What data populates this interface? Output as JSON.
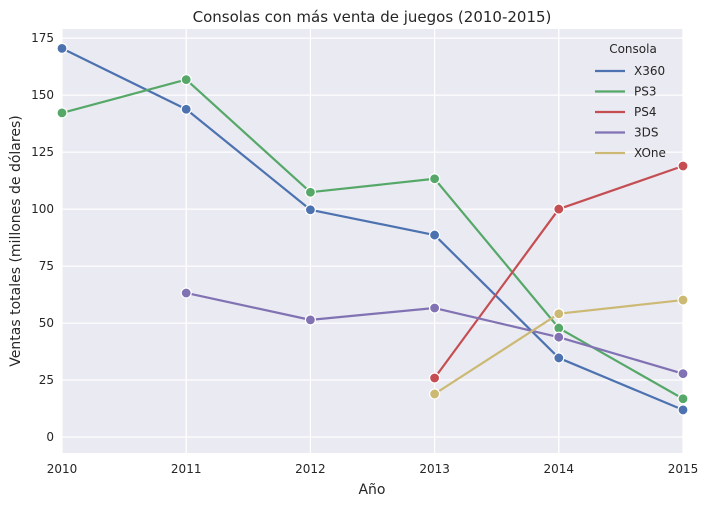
{
  "chart_data": {
    "type": "line",
    "title": "Consolas con más venta de juegos (2010-2015)",
    "xlabel": "Año",
    "ylabel": "Ventas totales (millones de dólares)",
    "x": [
      2010,
      2011,
      2012,
      2013,
      2014,
      2015
    ],
    "xlim": [
      2010,
      2015
    ],
    "ylim": [
      -7,
      179
    ],
    "yticks": [
      0,
      25,
      50,
      75,
      100,
      125,
      150,
      175
    ],
    "grid": true,
    "legend": {
      "title": "Consola",
      "placement": "top-right"
    },
    "series": [
      {
        "name": "X360",
        "color": "#4c72b0",
        "values": [
          170.5,
          143.8,
          99.7,
          88.6,
          34.7,
          11.9
        ]
      },
      {
        "name": "PS3",
        "color": "#55a868",
        "values": [
          142.2,
          156.8,
          107.4,
          113.3,
          47.8,
          16.8
        ]
      },
      {
        "name": "PS4",
        "color": "#c44e52",
        "values": [
          null,
          null,
          null,
          25.9,
          100.0,
          118.9
        ]
      },
      {
        "name": "3DS",
        "color": "#8172b3",
        "values": [
          null,
          63.2,
          51.4,
          56.6,
          43.8,
          27.8
        ]
      },
      {
        "name": "XOne",
        "color": "#ccb974",
        "values": [
          null,
          null,
          null,
          18.9,
          54.1,
          60.1
        ]
      }
    ]
  }
}
